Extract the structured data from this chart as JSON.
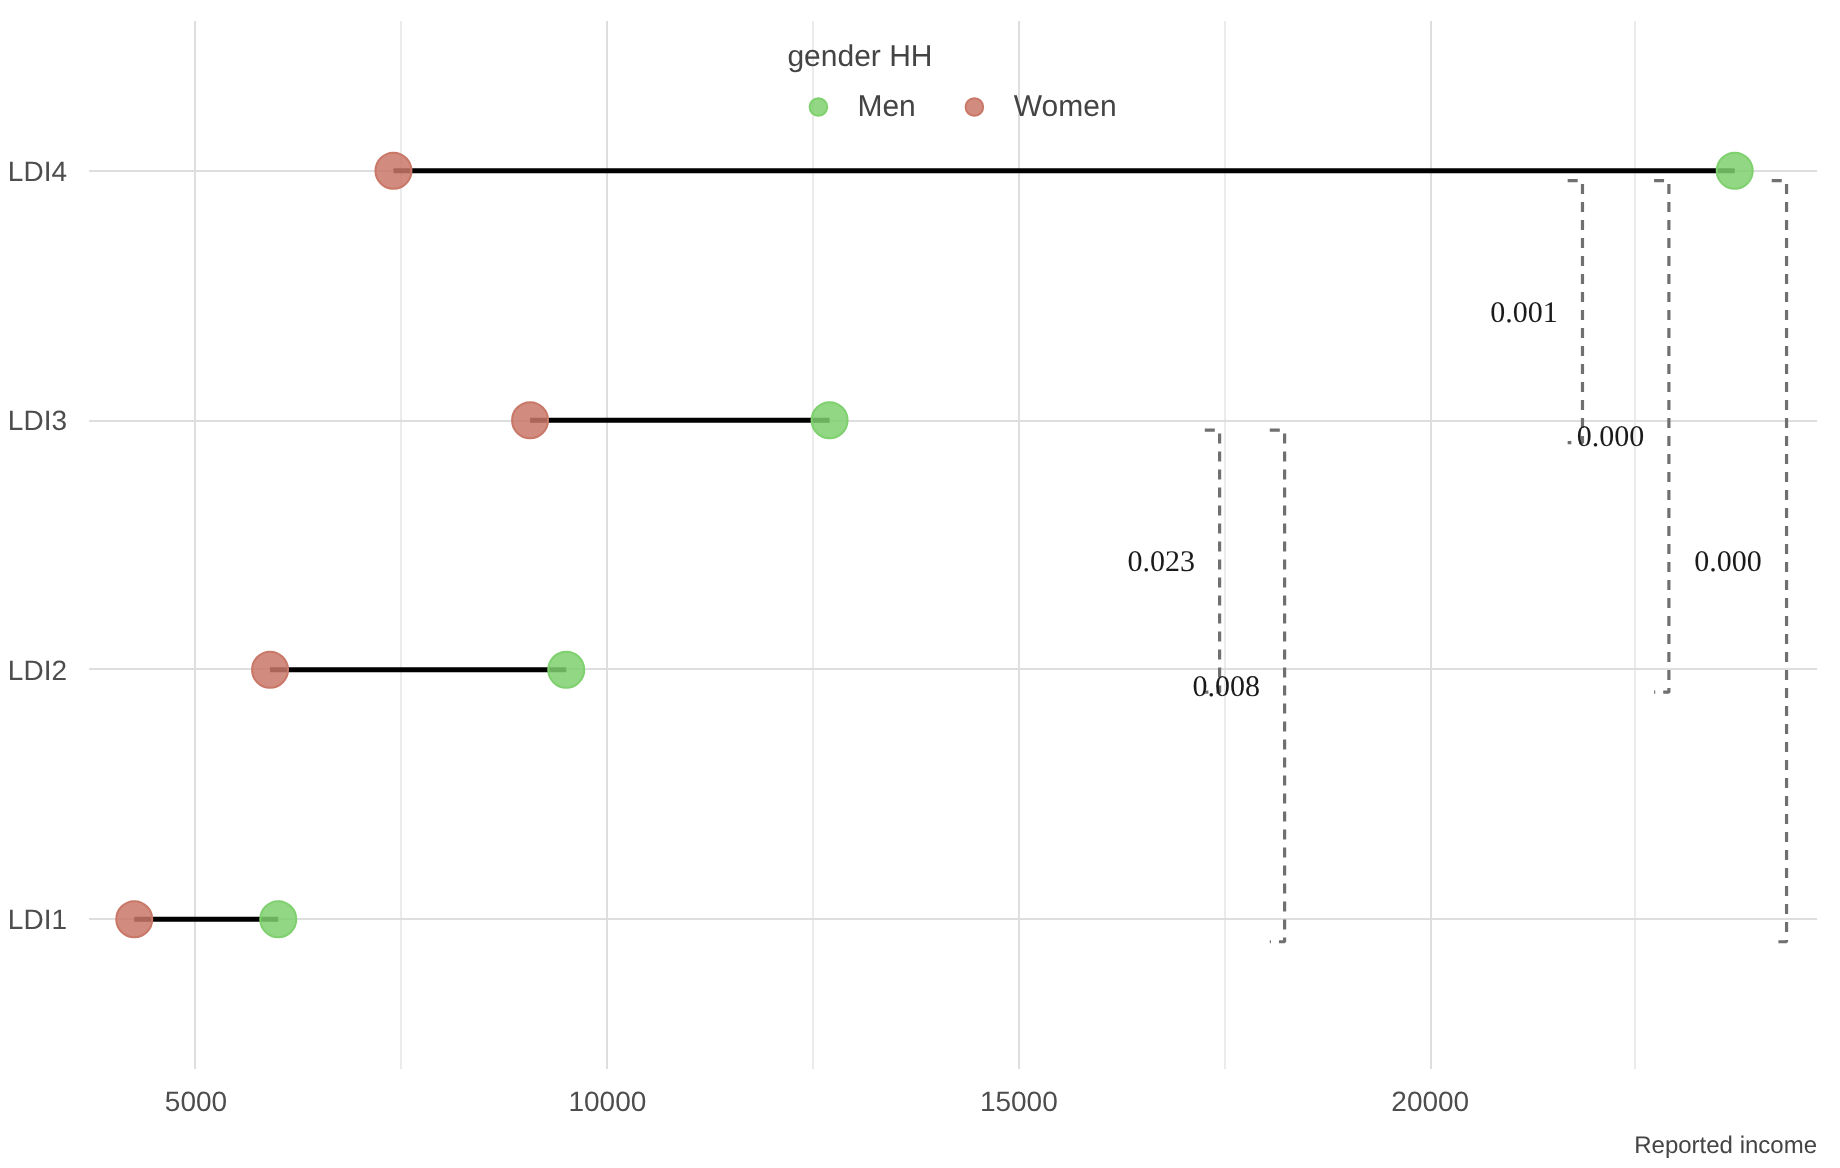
{
  "chart_data": {
    "type": "scatter",
    "orientation": "horizontal",
    "xlabel": "Reported income",
    "legend_title": "gender HH",
    "legend": "top",
    "grid": true,
    "categories": [
      "LDI4",
      "LDI3",
      "LDI2",
      "LDI1"
    ],
    "series": [
      {
        "name": "Men",
        "color": "#7fd06e",
        "values": [
          23700,
          12700,
          9500,
          6000
        ]
      },
      {
        "name": "Women",
        "color": "#c97868",
        "values": [
          7400,
          9060,
          5900,
          4250
        ]
      }
    ],
    "xlim": [
      3700,
      24700
    ],
    "xticks": [
      5000,
      10000,
      15000,
      20000
    ],
    "annotations": [
      "0.001",
      "0.000",
      "0.000",
      "0.023",
      "0.008"
    ]
  }
}
